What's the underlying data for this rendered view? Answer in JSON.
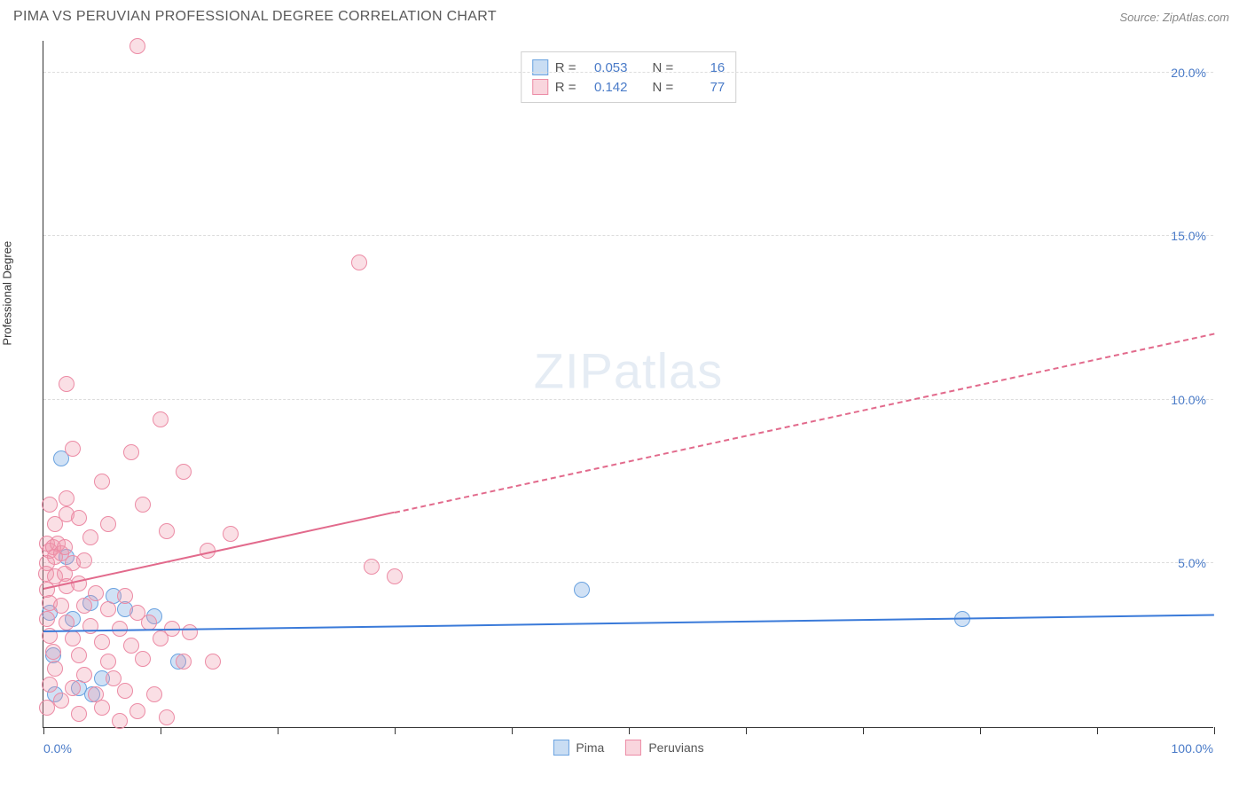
{
  "title": "PIMA VS PERUVIAN PROFESSIONAL DEGREE CORRELATION CHART",
  "source": "Source: ZipAtlas.com",
  "y_axis_label": "Professional Degree",
  "watermark": {
    "bold": "ZIP",
    "rest": "atlas"
  },
  "chart": {
    "type": "scatter",
    "xlim": [
      0,
      100
    ],
    "ylim": [
      0,
      21
    ],
    "x_tick_labels": {
      "start": "0.0%",
      "end": "100.0%"
    },
    "x_tick_positions": [
      0,
      10,
      20,
      30,
      40,
      50,
      60,
      70,
      80,
      90,
      100
    ],
    "y_ticks": [
      {
        "value": 5,
        "label": "5.0%"
      },
      {
        "value": 10,
        "label": "10.0%"
      },
      {
        "value": 15,
        "label": "15.0%"
      },
      {
        "value": 20,
        "label": "20.0%"
      }
    ],
    "grid_color": "#dddddd",
    "background_color": "#ffffff",
    "series": [
      {
        "name": "Pima",
        "color_fill": "rgba(120,170,225,0.35)",
        "color_stroke": "#6ba3e0",
        "marker_size": 18,
        "R": "0.053",
        "N": "16",
        "trend": {
          "x1": 0,
          "y1": 2.9,
          "x2": 100,
          "y2": 3.4,
          "solid_until": 100,
          "color": "#3a7ad9",
          "width": 2
        },
        "points": [
          {
            "x": 1.5,
            "y": 8.2
          },
          {
            "x": 0.5,
            "y": 3.5
          },
          {
            "x": 0.8,
            "y": 2.2
          },
          {
            "x": 3.0,
            "y": 1.2
          },
          {
            "x": 4.2,
            "y": 1.0
          },
          {
            "x": 5.0,
            "y": 1.5
          },
          {
            "x": 4.0,
            "y": 3.8
          },
          {
            "x": 2.5,
            "y": 3.3
          },
          {
            "x": 7.0,
            "y": 3.6
          },
          {
            "x": 9.5,
            "y": 3.4
          },
          {
            "x": 11.5,
            "y": 2.0
          },
          {
            "x": 46.0,
            "y": 4.2
          },
          {
            "x": 78.5,
            "y": 3.3
          },
          {
            "x": 1.0,
            "y": 1.0
          },
          {
            "x": 2.0,
            "y": 5.2
          },
          {
            "x": 6.0,
            "y": 4.0
          }
        ]
      },
      {
        "name": "Peruvians",
        "color_fill": "rgba(240,150,170,0.3)",
        "color_stroke": "#ec8ba5",
        "marker_size": 18,
        "R": "0.142",
        "N": "77",
        "trend": {
          "x1": 0,
          "y1": 4.2,
          "x2": 100,
          "y2": 12.0,
          "solid_until": 30,
          "color": "#e26a8c",
          "width": 2
        },
        "points": [
          {
            "x": 8.0,
            "y": 20.8
          },
          {
            "x": 27.0,
            "y": 14.2
          },
          {
            "x": 2.0,
            "y": 10.5
          },
          {
            "x": 10.0,
            "y": 9.4
          },
          {
            "x": 2.5,
            "y": 8.5
          },
          {
            "x": 7.5,
            "y": 8.4
          },
          {
            "x": 12.0,
            "y": 7.8
          },
          {
            "x": 5.0,
            "y": 7.5
          },
          {
            "x": 8.5,
            "y": 6.8
          },
          {
            "x": 2.0,
            "y": 6.5
          },
          {
            "x": 5.5,
            "y": 6.2
          },
          {
            "x": 10.5,
            "y": 6.0
          },
          {
            "x": 16.0,
            "y": 5.9
          },
          {
            "x": 14.0,
            "y": 5.4
          },
          {
            "x": 0.3,
            "y": 5.6
          },
          {
            "x": 0.5,
            "y": 5.4
          },
          {
            "x": 0.8,
            "y": 5.5
          },
          {
            "x": 1.0,
            "y": 5.2
          },
          {
            "x": 1.2,
            "y": 5.6
          },
          {
            "x": 1.5,
            "y": 5.3
          },
          {
            "x": 1.8,
            "y": 5.5
          },
          {
            "x": 0.3,
            "y": 5.0
          },
          {
            "x": 2.5,
            "y": 5.0
          },
          {
            "x": 3.5,
            "y": 5.1
          },
          {
            "x": 0.2,
            "y": 4.7
          },
          {
            "x": 1.0,
            "y": 4.6
          },
          {
            "x": 1.8,
            "y": 4.7
          },
          {
            "x": 28.0,
            "y": 4.9
          },
          {
            "x": 30.0,
            "y": 4.6
          },
          {
            "x": 0.3,
            "y": 4.2
          },
          {
            "x": 2.0,
            "y": 4.3
          },
          {
            "x": 3.0,
            "y": 4.4
          },
          {
            "x": 4.5,
            "y": 4.1
          },
          {
            "x": 7.0,
            "y": 4.0
          },
          {
            "x": 0.5,
            "y": 3.8
          },
          {
            "x": 1.5,
            "y": 3.7
          },
          {
            "x": 3.5,
            "y": 3.7
          },
          {
            "x": 5.5,
            "y": 3.6
          },
          {
            "x": 8.0,
            "y": 3.5
          },
          {
            "x": 0.3,
            "y": 3.3
          },
          {
            "x": 2.0,
            "y": 3.2
          },
          {
            "x": 4.0,
            "y": 3.1
          },
          {
            "x": 6.5,
            "y": 3.0
          },
          {
            "x": 9.0,
            "y": 3.2
          },
          {
            "x": 11.0,
            "y": 3.0
          },
          {
            "x": 0.5,
            "y": 2.8
          },
          {
            "x": 2.5,
            "y": 2.7
          },
          {
            "x": 5.0,
            "y": 2.6
          },
          {
            "x": 7.5,
            "y": 2.5
          },
          {
            "x": 10.0,
            "y": 2.7
          },
          {
            "x": 12.5,
            "y": 2.9
          },
          {
            "x": 0.8,
            "y": 2.3
          },
          {
            "x": 3.0,
            "y": 2.2
          },
          {
            "x": 5.5,
            "y": 2.0
          },
          {
            "x": 8.5,
            "y": 2.1
          },
          {
            "x": 12.0,
            "y": 2.0
          },
          {
            "x": 14.5,
            "y": 2.0
          },
          {
            "x": 1.0,
            "y": 1.8
          },
          {
            "x": 3.5,
            "y": 1.6
          },
          {
            "x": 6.0,
            "y": 1.5
          },
          {
            "x": 0.5,
            "y": 1.3
          },
          {
            "x": 2.5,
            "y": 1.2
          },
          {
            "x": 4.5,
            "y": 1.0
          },
          {
            "x": 7.0,
            "y": 1.1
          },
          {
            "x": 9.5,
            "y": 1.0
          },
          {
            "x": 1.5,
            "y": 0.8
          },
          {
            "x": 5.0,
            "y": 0.6
          },
          {
            "x": 8.0,
            "y": 0.5
          },
          {
            "x": 10.5,
            "y": 0.3
          },
          {
            "x": 3.0,
            "y": 0.4
          },
          {
            "x": 0.3,
            "y": 0.6
          },
          {
            "x": 6.5,
            "y": 0.2
          },
          {
            "x": 2.0,
            "y": 7.0
          },
          {
            "x": 4.0,
            "y": 5.8
          },
          {
            "x": 1.0,
            "y": 6.2
          },
          {
            "x": 0.5,
            "y": 6.8
          },
          {
            "x": 3.0,
            "y": 6.4
          }
        ]
      }
    ]
  },
  "legend": [
    {
      "swatch": "blue",
      "label": "Pima"
    },
    {
      "swatch": "pink",
      "label": "Peruvians"
    }
  ],
  "stats_header": {
    "r_label": "R =",
    "n_label": "N ="
  }
}
